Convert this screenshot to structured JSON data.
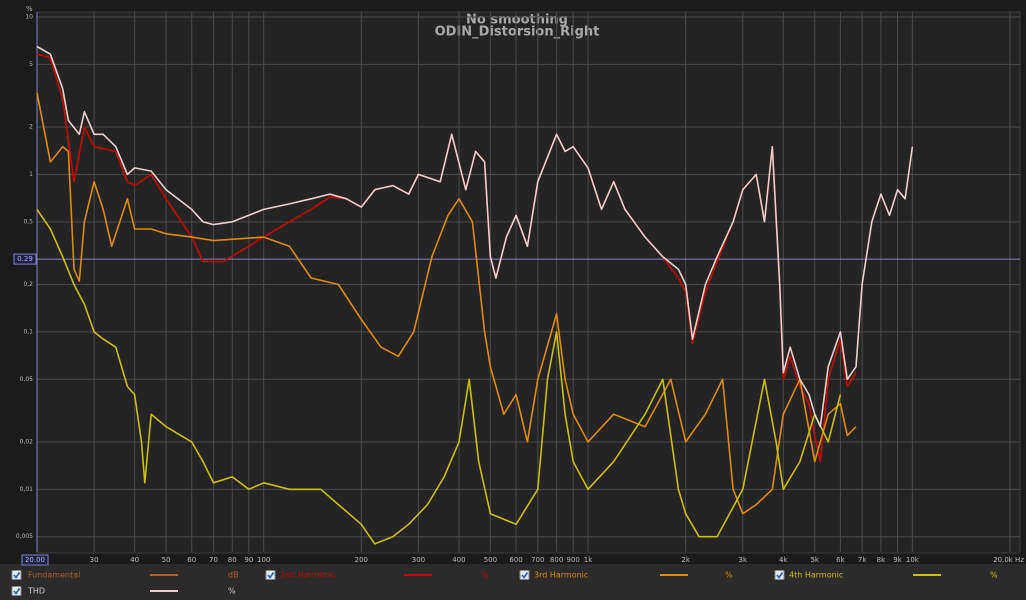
{
  "chart_data": {
    "type": "line",
    "title": "No smoothing",
    "subtitle": "ODIN_Distorsion_Right",
    "y_unit": "%",
    "log_x": true,
    "log_y": true,
    "grid": true,
    "xlim": [
      20,
      20000
    ],
    "ylim": [
      0.004,
      10
    ],
    "xticks": [
      {
        "value": 30,
        "label": "30"
      },
      {
        "value": 40,
        "label": "40"
      },
      {
        "value": 50,
        "label": "50"
      },
      {
        "value": 60,
        "label": "60"
      },
      {
        "value": 70,
        "label": "70"
      },
      {
        "value": 80,
        "label": "80"
      },
      {
        "value": 90,
        "label": "90"
      },
      {
        "value": 100,
        "label": "100"
      },
      {
        "value": 200,
        "label": "200"
      },
      {
        "value": 300,
        "label": "300"
      },
      {
        "value": 400,
        "label": "400"
      },
      {
        "value": 500,
        "label": "500"
      },
      {
        "value": 600,
        "label": "600"
      },
      {
        "value": 700,
        "label": "700"
      },
      {
        "value": 800,
        "label": "800"
      },
      {
        "value": 900,
        "label": "900"
      },
      {
        "value": 1000,
        "label": "1k"
      },
      {
        "value": 2000,
        "label": "2k"
      },
      {
        "value": 3000,
        "label": "3k"
      },
      {
        "value": 4000,
        "label": "4k"
      },
      {
        "value": 5000,
        "label": "5k"
      },
      {
        "value": 6000,
        "label": "6k"
      },
      {
        "value": 7000,
        "label": "7k"
      },
      {
        "value": 8000,
        "label": "8k"
      },
      {
        "value": 9000,
        "label": "9k"
      },
      {
        "value": 10000,
        "label": "10k"
      },
      {
        "value": 20000,
        "label": "20.0k Hz"
      }
    ],
    "yticks": [
      10,
      5,
      2,
      1,
      {
        "value": 0.5,
        "label": "0,5"
      },
      {
        "value": 0.2,
        "label": "0,2"
      },
      {
        "value": 0.1,
        "label": "0,1"
      },
      {
        "value": 0.05,
        "label": "0,05"
      },
      {
        "value": 0.02,
        "label": "0,02"
      },
      {
        "value": 0.01,
        "label": "0,01"
      },
      {
        "value": 0.005,
        "label": "0,005"
      }
    ],
    "cursor_x": {
      "value": 20,
      "label": "20.00"
    },
    "cursor_y": {
      "value": 0.29,
      "label": "0.29"
    },
    "legend_only": [
      {
        "name": "Fundamental",
        "color": "#b0602a",
        "unit": "dB"
      }
    ],
    "series": [
      {
        "name": "2nd Harmonic",
        "color": "#c80000",
        "unit": "%",
        "x": [
          20,
          22,
          24,
          26,
          28,
          30,
          35,
          38,
          40,
          45,
          50,
          60,
          65,
          75,
          90,
          100,
          120,
          140,
          160,
          180,
          200,
          220,
          250,
          280,
          300,
          350,
          380,
          420,
          450,
          480,
          500,
          520,
          560,
          600,
          650,
          700,
          800,
          850,
          900,
          1000,
          1100,
          1200,
          1300,
          1500,
          1700,
          1900,
          2000,
          2100,
          2300,
          2500,
          2800,
          3000,
          3300,
          3500,
          3700,
          3900,
          4000,
          4200,
          4500,
          4800,
          5000,
          5200,
          5500,
          6000,
          6300,
          6700
        ],
        "values": [
          5.8,
          5.5,
          3.0,
          0.9,
          2.0,
          1.5,
          1.4,
          0.9,
          0.85,
          1.0,
          0.7,
          0.4,
          0.28,
          0.28,
          0.35,
          0.4,
          0.5,
          0.6,
          0.72,
          0.7,
          0.62,
          0.8,
          0.85,
          0.75,
          1.0,
          0.9,
          1.8,
          0.8,
          1.4,
          1.2,
          0.3,
          0.22,
          0.4,
          0.55,
          0.35,
          0.9,
          1.8,
          1.4,
          1.5,
          1.1,
          0.6,
          0.9,
          0.6,
          0.4,
          0.3,
          0.22,
          0.18,
          0.085,
          0.18,
          0.28,
          0.5,
          0.8,
          1.0,
          0.5,
          1.5,
          0.2,
          0.05,
          0.07,
          0.045,
          0.035,
          0.022,
          0.015,
          0.05,
          0.09,
          0.045,
          0.055
        ]
      },
      {
        "name": "3rd Harmonic",
        "color": "#e08a00",
        "unit": "%",
        "x": [
          20,
          22,
          24,
          25,
          26,
          27,
          28,
          30,
          32,
          34,
          36,
          38,
          40,
          45,
          50,
          60,
          70,
          100,
          120,
          140,
          170,
          200,
          230,
          260,
          290,
          330,
          370,
          400,
          440,
          480,
          500,
          550,
          600,
          650,
          700,
          800,
          850,
          900,
          1000,
          1200,
          1500,
          1800,
          2000,
          2300,
          2600,
          2800,
          3000,
          3300,
          3700,
          4000,
          4500,
          5000,
          5500,
          6000,
          6300,
          6700
        ],
        "values": [
          3.3,
          1.2,
          1.5,
          1.4,
          0.25,
          0.21,
          0.5,
          0.9,
          0.6,
          0.35,
          0.5,
          0.7,
          0.45,
          0.45,
          0.42,
          0.4,
          0.38,
          0.4,
          0.35,
          0.22,
          0.2,
          0.12,
          0.08,
          0.07,
          0.1,
          0.3,
          0.55,
          0.7,
          0.5,
          0.1,
          0.06,
          0.03,
          0.04,
          0.02,
          0.05,
          0.13,
          0.05,
          0.03,
          0.02,
          0.03,
          0.025,
          0.05,
          0.02,
          0.03,
          0.05,
          0.01,
          0.007,
          0.008,
          0.01,
          0.03,
          0.05,
          0.015,
          0.03,
          0.035,
          0.022,
          0.025
        ]
      },
      {
        "name": "4th Harmonic",
        "color": "#c8c000",
        "unit": "%",
        "x": [
          20,
          22,
          24,
          26,
          28,
          30,
          32,
          35,
          38,
          40,
          42,
          43,
          45,
          50,
          60,
          65,
          70,
          80,
          90,
          100,
          120,
          150,
          170,
          200,
          220,
          250,
          280,
          320,
          360,
          400,
          430,
          460,
          500,
          600,
          700,
          750,
          800,
          850,
          900,
          1000,
          1200,
          1500,
          1700,
          1900,
          2000,
          2200,
          2500,
          3000,
          3500,
          3800,
          4000,
          4500,
          5000,
          5500,
          6000
        ],
        "values": [
          0.6,
          0.45,
          0.3,
          0.2,
          0.15,
          0.1,
          0.09,
          0.08,
          0.045,
          0.04,
          0.02,
          0.011,
          0.03,
          0.025,
          0.02,
          0.015,
          0.011,
          0.012,
          0.01,
          0.011,
          0.01,
          0.01,
          0.008,
          0.006,
          0.0045,
          0.005,
          0.006,
          0.008,
          0.012,
          0.02,
          0.05,
          0.015,
          0.007,
          0.006,
          0.01,
          0.05,
          0.1,
          0.03,
          0.015,
          0.01,
          0.015,
          0.03,
          0.05,
          0.01,
          0.007,
          0.005,
          0.005,
          0.01,
          0.05,
          0.02,
          0.01,
          0.015,
          0.03,
          0.02,
          0.04
        ]
      },
      {
        "name": "THD",
        "color": "#ecd0d0",
        "unit": "%",
        "x": [
          20,
          22,
          24,
          25,
          27,
          28,
          30,
          32,
          35,
          38,
          40,
          45,
          50,
          60,
          65,
          70,
          80,
          90,
          100,
          120,
          140,
          160,
          180,
          200,
          220,
          250,
          280,
          300,
          350,
          380,
          420,
          450,
          480,
          500,
          520,
          560,
          600,
          650,
          700,
          800,
          850,
          900,
          1000,
          1100,
          1200,
          1300,
          1500,
          1700,
          1900,
          2000,
          2100,
          2300,
          2500,
          2800,
          3000,
          3300,
          3500,
          3700,
          3900,
          4000,
          4200,
          4500,
          4800,
          5000,
          5200,
          5500,
          6000,
          6300,
          6700,
          7000,
          7500,
          8000,
          8500,
          9000,
          9500,
          10000
        ],
        "values": [
          6.5,
          5.8,
          3.5,
          2.2,
          1.8,
          2.5,
          1.8,
          1.8,
          1.5,
          1.0,
          1.1,
          1.05,
          0.8,
          0.6,
          0.5,
          0.48,
          0.5,
          0.55,
          0.6,
          0.65,
          0.7,
          0.75,
          0.7,
          0.62,
          0.8,
          0.85,
          0.75,
          1.0,
          0.9,
          1.8,
          0.8,
          1.4,
          1.2,
          0.3,
          0.22,
          0.4,
          0.55,
          0.35,
          0.9,
          1.8,
          1.4,
          1.5,
          1.1,
          0.6,
          0.9,
          0.6,
          0.4,
          0.3,
          0.25,
          0.2,
          0.09,
          0.2,
          0.3,
          0.5,
          0.8,
          1.0,
          0.5,
          1.5,
          0.2,
          0.055,
          0.08,
          0.05,
          0.04,
          0.03,
          0.025,
          0.06,
          0.1,
          0.05,
          0.06,
          0.2,
          0.5,
          0.75,
          0.55,
          0.8,
          0.7,
          1.5
        ]
      }
    ]
  }
}
